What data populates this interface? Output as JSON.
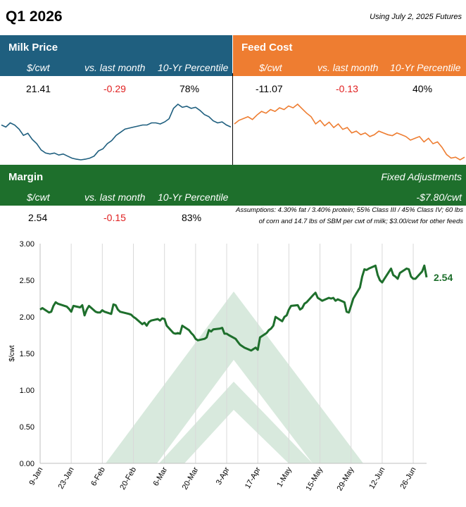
{
  "header": {
    "title": "Q1 2026",
    "futures_note": "Using July 2, 2025 Futures"
  },
  "milk": {
    "label": "Milk Price",
    "col_unit": "$/cwt",
    "col_change": "vs. last month",
    "col_pct": "10-Yr Percentile",
    "value": "21.41",
    "change": "-0.29",
    "percentile": "78%",
    "spark": [
      1.7,
      1.6,
      1.8,
      1.7,
      1.5,
      1.2,
      1.3,
      1.0,
      0.8,
      0.5,
      0.35,
      0.3,
      0.35,
      0.25,
      0.3,
      0.2,
      0.1,
      0.05,
      0.02,
      0.05,
      0.1,
      0.2,
      0.45,
      0.55,
      0.8,
      0.95,
      1.2,
      1.35,
      1.5,
      1.55,
      1.6,
      1.65,
      1.7,
      1.7,
      1.8,
      1.8,
      1.75,
      1.85,
      2.0,
      2.5,
      2.7,
      2.55,
      2.6,
      2.5,
      2.55,
      2.4,
      2.2,
      2.1,
      1.9,
      1.8,
      1.85,
      1.7,
      1.6
    ]
  },
  "feed": {
    "label": "Feed Cost",
    "col_unit": "$/cwt",
    "col_change": "vs. last month",
    "col_pct": "10-Yr Percentile",
    "value": "-11.07",
    "change": "-0.13",
    "percentile": "40%",
    "spark": [
      2.2,
      2.4,
      2.5,
      2.6,
      2.45,
      2.7,
      2.9,
      2.8,
      3.0,
      2.9,
      3.1,
      3.0,
      3.2,
      3.1,
      3.3,
      3.05,
      2.8,
      2.6,
      2.2,
      2.4,
      2.1,
      2.3,
      2.0,
      2.2,
      1.9,
      2.0,
      1.7,
      1.8,
      1.6,
      1.7,
      1.5,
      1.6,
      1.8,
      1.7,
      1.6,
      1.55,
      1.7,
      1.6,
      1.5,
      1.3,
      1.4,
      1.5,
      1.2,
      1.4,
      1.1,
      1.2,
      0.9,
      0.5,
      0.3,
      0.35,
      0.2,
      0.35
    ]
  },
  "margin": {
    "label": "Margin",
    "col_unit": "$/cwt",
    "col_change": "vs. last month",
    "col_pct": "10-Yr Percentile",
    "value": "2.54",
    "change": "-0.15",
    "percentile": "83%",
    "fixed_label": "Fixed Adjustments",
    "fixed_value": "-$7.80/cwt",
    "assumptions_1": "Assumptions: 4.30% fat / 3.40% protein; 55% Class III / 45% Class IV; 60 lbs",
    "assumptions_2": "of corn and 14.7 lbs of SBM per cwt of milk; $3.00/cwt for other feeds"
  },
  "colors": {
    "milk": "#1f5f7f",
    "feed": "#ee7d31",
    "margin": "#1e6f2c",
    "watermark": "#d8e9dd"
  },
  "chart_data": {
    "type": "line",
    "ylabel": "$/cwt",
    "ylim": [
      0,
      3
    ],
    "yticks": [
      "0.00",
      "0.50",
      "1.00",
      "1.50",
      "2.00",
      "2.50",
      "3.00"
    ],
    "xlim": [
      "2025-01-09",
      "2025-07-02"
    ],
    "xticks": [
      "9-Jan",
      "23-Jan",
      "6-Feb",
      "20-Feb",
      "6-Mar",
      "20-Mar",
      "3-Apr",
      "17-Apr",
      "1-May",
      "15-May",
      "29-May",
      "12-Jun",
      "26-Jun"
    ],
    "xtick_dates": [
      "2025-01-09",
      "2025-01-23",
      "2025-02-06",
      "2025-02-20",
      "2025-03-06",
      "2025-03-20",
      "2025-04-03",
      "2025-04-17",
      "2025-05-01",
      "2025-05-15",
      "2025-05-29",
      "2025-06-12",
      "2025-06-26"
    ],
    "grid": "vertical",
    "end_label": "2.54",
    "series": [
      {
        "points": [
          [
            "2025-01-09",
            2.1
          ],
          [
            "2025-01-10",
            2.12
          ],
          [
            "2025-01-13",
            2.06
          ],
          [
            "2025-01-14",
            2.07
          ],
          [
            "2025-01-15",
            2.15
          ],
          [
            "2025-01-16",
            2.2
          ],
          [
            "2025-01-17",
            2.18
          ],
          [
            "2025-01-21",
            2.14
          ],
          [
            "2025-01-22",
            2.11
          ],
          [
            "2025-01-23",
            2.07
          ],
          [
            "2025-01-24",
            2.15
          ],
          [
            "2025-01-27",
            2.13
          ],
          [
            "2025-01-28",
            2.16
          ],
          [
            "2025-01-29",
            2.02
          ],
          [
            "2025-01-30",
            2.1
          ],
          [
            "2025-01-31",
            2.15
          ],
          [
            "2025-02-03",
            2.07
          ],
          [
            "2025-02-04",
            2.06
          ],
          [
            "2025-02-05",
            2.06
          ],
          [
            "2025-02-06",
            2.09
          ],
          [
            "2025-02-07",
            2.07
          ],
          [
            "2025-02-10",
            2.04
          ],
          [
            "2025-02-11",
            2.17
          ],
          [
            "2025-02-12",
            2.16
          ],
          [
            "2025-02-13",
            2.1
          ],
          [
            "2025-02-14",
            2.07
          ],
          [
            "2025-02-18",
            2.04
          ],
          [
            "2025-02-19",
            2.03
          ],
          [
            "2025-02-20",
            2.0
          ],
          [
            "2025-02-21",
            1.98
          ],
          [
            "2025-02-24",
            1.9
          ],
          [
            "2025-02-25",
            1.92
          ],
          [
            "2025-02-26",
            1.88
          ],
          [
            "2025-02-27",
            1.93
          ],
          [
            "2025-02-28",
            1.95
          ],
          [
            "2025-03-03",
            1.97
          ],
          [
            "2025-03-04",
            1.95
          ],
          [
            "2025-03-05",
            1.98
          ],
          [
            "2025-03-06",
            1.97
          ],
          [
            "2025-03-07",
            1.88
          ],
          [
            "2025-03-10",
            1.78
          ],
          [
            "2025-03-11",
            1.77
          ],
          [
            "2025-03-12",
            1.78
          ],
          [
            "2025-03-13",
            1.77
          ],
          [
            "2025-03-14",
            1.88
          ],
          [
            "2025-03-17",
            1.82
          ],
          [
            "2025-03-18",
            1.78
          ],
          [
            "2025-03-19",
            1.75
          ],
          [
            "2025-03-20",
            1.7
          ],
          [
            "2025-03-21",
            1.68
          ],
          [
            "2025-03-24",
            1.7
          ],
          [
            "2025-03-25",
            1.72
          ],
          [
            "2025-03-26",
            1.82
          ],
          [
            "2025-03-27",
            1.8
          ],
          [
            "2025-03-28",
            1.83
          ],
          [
            "2025-03-31",
            1.84
          ],
          [
            "2025-04-01",
            1.85
          ],
          [
            "2025-04-02",
            1.77
          ],
          [
            "2025-04-03",
            1.77
          ],
          [
            "2025-04-04",
            1.75
          ],
          [
            "2025-04-07",
            1.7
          ],
          [
            "2025-04-08",
            1.66
          ],
          [
            "2025-04-09",
            1.62
          ],
          [
            "2025-04-10",
            1.6
          ],
          [
            "2025-04-11",
            1.58
          ],
          [
            "2025-04-14",
            1.54
          ],
          [
            "2025-04-15",
            1.56
          ],
          [
            "2025-04-16",
            1.58
          ],
          [
            "2025-04-17",
            1.55
          ],
          [
            "2025-04-18",
            1.72
          ],
          [
            "2025-04-21",
            1.78
          ],
          [
            "2025-04-22",
            1.82
          ],
          [
            "2025-04-23",
            1.84
          ],
          [
            "2025-04-24",
            1.88
          ],
          [
            "2025-04-25",
            2.0
          ],
          [
            "2025-04-28",
            1.94
          ],
          [
            "2025-04-29",
            2.0
          ],
          [
            "2025-04-30",
            2.02
          ],
          [
            "2025-05-01",
            2.1
          ],
          [
            "2025-05-02",
            2.15
          ],
          [
            "2025-05-05",
            2.16
          ],
          [
            "2025-05-06",
            2.1
          ],
          [
            "2025-05-07",
            2.12
          ],
          [
            "2025-05-08",
            2.18
          ],
          [
            "2025-05-09",
            2.2
          ],
          [
            "2025-05-12",
            2.3
          ],
          [
            "2025-05-13",
            2.33
          ],
          [
            "2025-05-14",
            2.26
          ],
          [
            "2025-05-15",
            2.24
          ],
          [
            "2025-05-16",
            2.22
          ],
          [
            "2025-05-19",
            2.26
          ],
          [
            "2025-05-20",
            2.25
          ],
          [
            "2025-05-21",
            2.26
          ],
          [
            "2025-05-22",
            2.22
          ],
          [
            "2025-05-23",
            2.24
          ],
          [
            "2025-05-26",
            2.2
          ],
          [
            "2025-05-27",
            2.07
          ],
          [
            "2025-05-28",
            2.06
          ],
          [
            "2025-05-29",
            2.15
          ],
          [
            "2025-05-30",
            2.25
          ],
          [
            "2025-06-02",
            2.4
          ],
          [
            "2025-06-03",
            2.55
          ],
          [
            "2025-06-04",
            2.65
          ],
          [
            "2025-06-05",
            2.64
          ],
          [
            "2025-06-06",
            2.66
          ],
          [
            "2025-06-09",
            2.7
          ],
          [
            "2025-06-10",
            2.57
          ],
          [
            "2025-06-11",
            2.5
          ],
          [
            "2025-06-12",
            2.47
          ],
          [
            "2025-06-13",
            2.52
          ],
          [
            "2025-06-16",
            2.66
          ],
          [
            "2025-06-17",
            2.57
          ],
          [
            "2025-06-18",
            2.55
          ],
          [
            "2025-06-19",
            2.52
          ],
          [
            "2025-06-20",
            2.6
          ],
          [
            "2025-06-23",
            2.66
          ],
          [
            "2025-06-24",
            2.65
          ],
          [
            "2025-06-25",
            2.55
          ],
          [
            "2025-06-26",
            2.52
          ],
          [
            "2025-06-27",
            2.52
          ],
          [
            "2025-06-30",
            2.62
          ],
          [
            "2025-07-01",
            2.7
          ],
          [
            "2025-07-02",
            2.54
          ]
        ]
      }
    ]
  }
}
